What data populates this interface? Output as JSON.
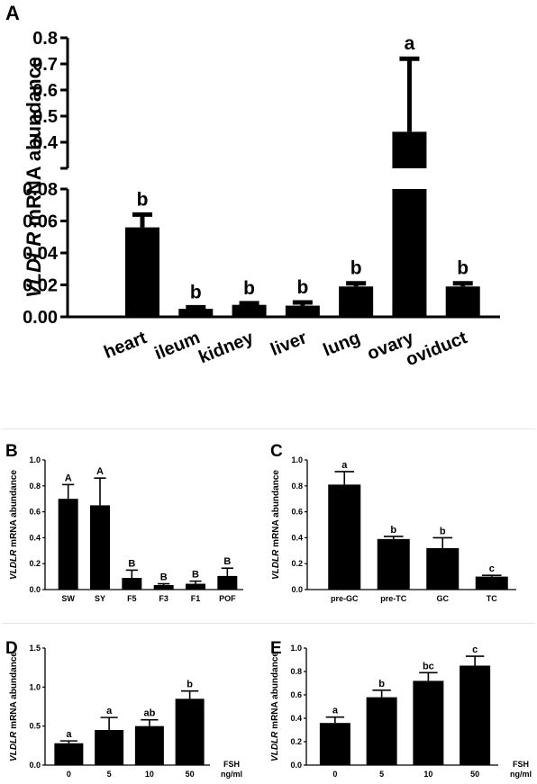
{
  "panels": {
    "A": "A",
    "B": "B",
    "C": "C",
    "D": "D",
    "E": "E"
  },
  "chart_data": [
    {
      "id": "A",
      "type": "bar",
      "ylabel_gene": "VLDLR",
      "ylabel_rest": " mRNA abundance",
      "categories": [
        "heart",
        "ileum",
        "kidney",
        "liver",
        "lung",
        "ovary",
        "oviduct"
      ],
      "values": [
        0.056,
        0.005,
        0.0075,
        0.007,
        0.019,
        0.44,
        0.019
      ],
      "errors": [
        0.008,
        0.001,
        0.001,
        0.002,
        0.002,
        0.28,
        0.002
      ],
      "sig_labels": [
        "b",
        "b",
        "b",
        "b",
        "b",
        "a",
        "b"
      ],
      "ylim_lower": [
        0,
        0.08
      ],
      "ylim_upper": [
        0.3,
        0.8
      ],
      "yticks_lower": [
        "0.00",
        "0.02",
        "0.04",
        "0.06",
        "0.08"
      ],
      "yticks_upper": [
        "0.4",
        "0.5",
        "0.6",
        "0.7",
        "0.8"
      ],
      "broken_axis": true
    },
    {
      "id": "B",
      "type": "bar",
      "ylabel_gene": "VLDLR",
      "ylabel_rest": " mRNA abundance",
      "categories": [
        "SW",
        "SY",
        "F5",
        "F3",
        "F1",
        "POF"
      ],
      "values": [
        0.7,
        0.65,
        0.09,
        0.035,
        0.045,
        0.105
      ],
      "errors": [
        0.11,
        0.21,
        0.06,
        0.01,
        0.02,
        0.06
      ],
      "sig_labels": [
        "A",
        "A",
        "B",
        "B",
        "B",
        "B"
      ],
      "ylim": [
        0,
        1.0
      ],
      "yticks": [
        "0.0",
        "0.2",
        "0.4",
        "0.6",
        "0.8",
        "1.0"
      ]
    },
    {
      "id": "C",
      "type": "bar",
      "ylabel_gene": "VLDLR",
      "ylabel_rest": " mRNA abundance",
      "categories": [
        "pre-GC",
        "pre-TC",
        "GC",
        "TC"
      ],
      "values": [
        0.81,
        0.39,
        0.32,
        0.1
      ],
      "errors": [
        0.1,
        0.02,
        0.08,
        0.01
      ],
      "sig_labels": [
        "a",
        "b",
        "b",
        "c"
      ],
      "ylim": [
        0,
        1.0
      ],
      "yticks": [
        "0.0",
        "0.2",
        "0.4",
        "0.6",
        "0.8",
        "1.0"
      ]
    },
    {
      "id": "D",
      "type": "bar",
      "ylabel_gene": "VLDLR",
      "ylabel_rest": " mRNA abundance",
      "categories": [
        "0",
        "5",
        "10",
        "50"
      ],
      "values": [
        0.28,
        0.45,
        0.5,
        0.85
      ],
      "errors": [
        0.03,
        0.16,
        0.08,
        0.1
      ],
      "sig_labels": [
        "a",
        "a",
        "ab",
        "b"
      ],
      "ylim": [
        0,
        1.5
      ],
      "yticks": [
        "0.0",
        "0.5",
        "1.0",
        "1.5"
      ],
      "xlabel_line1": "FSH",
      "xlabel_line2": "ng/ml"
    },
    {
      "id": "E",
      "type": "bar",
      "ylabel_gene": "VLDLR",
      "ylabel_rest": " mRNA abundance",
      "categories": [
        "0",
        "5",
        "10",
        "50"
      ],
      "values": [
        0.36,
        0.58,
        0.72,
        0.85
      ],
      "errors": [
        0.05,
        0.06,
        0.07,
        0.08
      ],
      "sig_labels": [
        "a",
        "b",
        "bc",
        "c"
      ],
      "ylim": [
        0,
        1.0
      ],
      "yticks": [
        "0.0",
        "0.2",
        "0.4",
        "0.6",
        "0.8",
        "1.0"
      ],
      "xlabel_line1": "FSH",
      "xlabel_line2": "ng/ml"
    }
  ]
}
